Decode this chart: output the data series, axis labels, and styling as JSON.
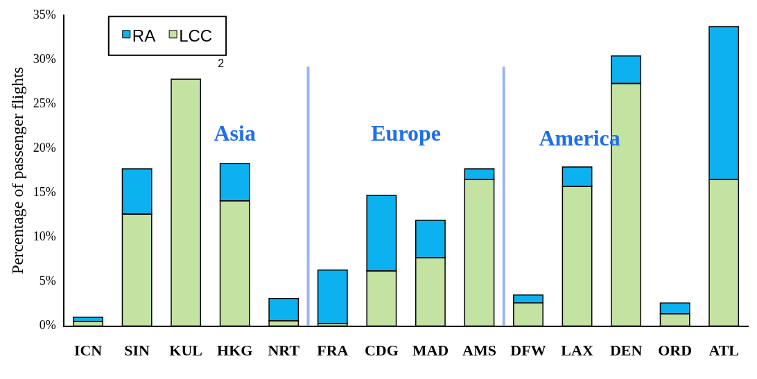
{
  "chart_data": {
    "type": "bar",
    "stacked": true,
    "ylabel": "Percentage of passenger flights",
    "categories": [
      "ICN",
      "SIN",
      "KUL",
      "HKG",
      "NRT",
      "FRA",
      "CDG",
      "MAD",
      "AMS",
      "DFW",
      "LAX",
      "DEN",
      "ORD",
      "ATL"
    ],
    "series": [
      {
        "name": "LCC",
        "color": "#c4e3a2",
        "values": [
          0.5,
          12.6,
          27.8,
          14.1,
          0.6,
          0.3,
          6.2,
          7.7,
          16.5,
          2.6,
          15.7,
          27.3,
          1.4,
          16.5
        ]
      },
      {
        "name": "RA",
        "color": "#0bb2ef",
        "values": [
          0.5,
          5.1,
          0,
          4.2,
          2.5,
          6.0,
          8.5,
          4.2,
          1.2,
          0.9,
          2.2,
          3.1,
          1.2,
          17.2
        ]
      }
    ],
    "ylim": [
      0,
      35
    ],
    "yticks": [
      {
        "value": 0,
        "label": "0%"
      },
      {
        "value": 5,
        "label": "5%"
      },
      {
        "value": 10,
        "label": "10%"
      },
      {
        "value": 15,
        "label": "15%"
      },
      {
        "value": 20,
        "label": "20%"
      },
      {
        "value": 25,
        "label": "25%"
      },
      {
        "value": 30,
        "label": "30%"
      },
      {
        "value": 35,
        "label": "35%"
      }
    ],
    "grid": false,
    "legend": "top left",
    "annotations": [
      "2",
      "Asia",
      "Europe",
      "America"
    ]
  }
}
